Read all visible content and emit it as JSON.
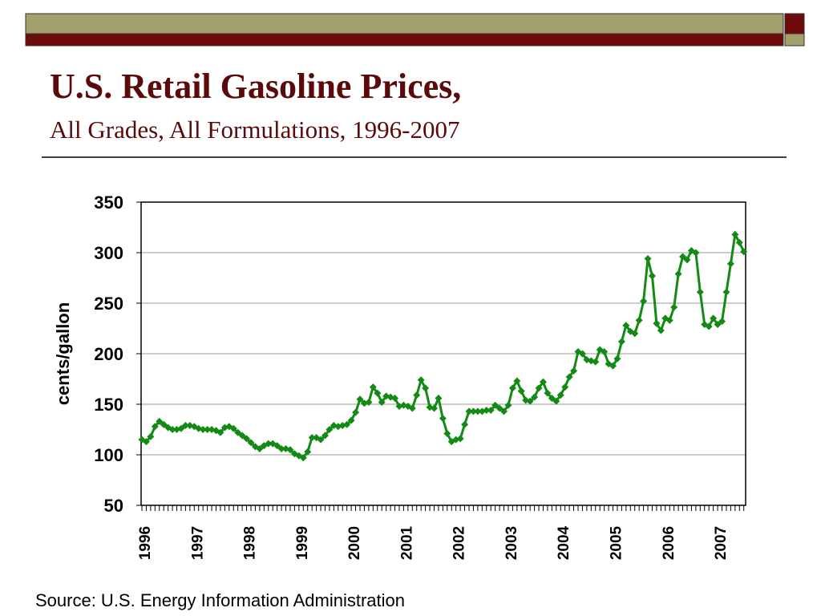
{
  "chart_data": {
    "type": "line",
    "title": "U.S. Retail Gasoline Prices,",
    "subtitle": "All Grades, All Formulations, 1996-2007",
    "ylabel": "cents/gallon",
    "source": "Source: U.S. Energy Information Administration",
    "categories": [
      "1996",
      null,
      null,
      null,
      null,
      null,
      null,
      null,
      null,
      null,
      null,
      null,
      "1997",
      null,
      null,
      null,
      null,
      null,
      null,
      null,
      null,
      null,
      null,
      null,
      "1998",
      null,
      null,
      null,
      null,
      null,
      null,
      null,
      null,
      null,
      null,
      null,
      "1999",
      null,
      null,
      null,
      null,
      null,
      null,
      null,
      null,
      null,
      null,
      null,
      "2000",
      null,
      null,
      null,
      null,
      null,
      null,
      null,
      null,
      null,
      null,
      null,
      "2001",
      null,
      null,
      null,
      null,
      null,
      null,
      null,
      null,
      null,
      null,
      null,
      "2002",
      null,
      null,
      null,
      null,
      null,
      null,
      null,
      null,
      null,
      null,
      null,
      "2003",
      null,
      null,
      null,
      null,
      null,
      null,
      null,
      null,
      null,
      null,
      null,
      "2004",
      null,
      null,
      null,
      null,
      null,
      null,
      null,
      null,
      null,
      null,
      null,
      "2005",
      null,
      null,
      null,
      null,
      null,
      null,
      null,
      null,
      null,
      null,
      null,
      "2006",
      null,
      null,
      null,
      null,
      null,
      null,
      null,
      null,
      null,
      null,
      null,
      "2007",
      null,
      null,
      null,
      null,
      null,
      null
    ],
    "values": [
      115,
      113,
      118,
      128,
      133,
      130,
      127,
      125,
      125,
      126,
      129,
      129,
      128,
      126,
      125,
      125,
      125,
      124,
      122,
      127,
      128,
      126,
      122,
      119,
      116,
      112,
      108,
      106,
      109,
      111,
      111,
      109,
      106,
      106,
      105,
      101,
      99,
      97,
      103,
      117,
      117,
      115,
      119,
      125,
      129,
      128,
      129,
      130,
      134,
      142,
      155,
      151,
      152,
      167,
      161,
      152,
      158,
      157,
      156,
      148,
      149,
      148,
      146,
      159,
      174,
      166,
      147,
      146,
      156,
      136,
      121,
      113,
      115,
      116,
      130,
      143,
      143,
      143,
      143,
      144,
      144,
      149,
      146,
      143,
      149,
      166,
      173,
      163,
      154,
      153,
      157,
      166,
      172,
      161,
      156,
      153,
      159,
      167,
      177,
      183,
      202,
      200,
      194,
      193,
      192,
      204,
      202,
      190,
      188,
      195,
      212,
      228,
      222,
      220,
      233,
      252,
      294,
      277,
      230,
      223,
      235,
      233,
      246,
      279,
      296,
      293,
      302,
      300,
      261,
      229,
      227,
      235,
      229,
      232,
      261,
      289,
      318,
      310,
      301
    ],
    "color": "#138a13",
    "ylim": [
      50,
      350
    ],
    "yticks": [
      50,
      100,
      150,
      200,
      250,
      300,
      350
    ],
    "grid": true
  }
}
